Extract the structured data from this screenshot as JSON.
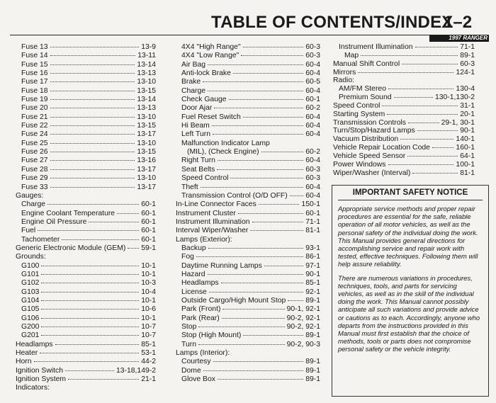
{
  "header": {
    "title": "TABLE OF CONTENTS/INDEX",
    "page_number": "1–2",
    "vehicle": "1997 RANGER"
  },
  "columns": [
    {
      "continued": [
        {
          "label": "Fuse 13",
          "page": "13-9"
        },
        {
          "label": "Fuse 14",
          "page": "13-11"
        },
        {
          "label": "Fuse 15",
          "page": "13-14"
        },
        {
          "label": "Fuse 16",
          "page": "13-13"
        },
        {
          "label": "Fuse 17",
          "page": "13-10"
        },
        {
          "label": "Fuse 18",
          "page": "13-15"
        },
        {
          "label": "Fuse 19",
          "page": "13-14"
        },
        {
          "label": "Fuse 20",
          "page": "13-13"
        },
        {
          "label": "Fuse 21",
          "page": "13-10"
        },
        {
          "label": "Fuse 22",
          "page": "13-15"
        },
        {
          "label": "Fuse 24",
          "page": "13-17"
        },
        {
          "label": "Fuse 25",
          "page": "13-10"
        },
        {
          "label": "Fuse 26",
          "page": "13-15"
        },
        {
          "label": "Fuse 27",
          "page": "13-16"
        },
        {
          "label": "Fuse 28",
          "page": "13-17"
        },
        {
          "label": "Fuse 29",
          "page": "13-10"
        },
        {
          "label": "Fuse 33",
          "page": "13-17"
        }
      ],
      "entries": [
        {
          "label": "Gauges:",
          "items": [
            {
              "label": "Charge",
              "page": "60-1"
            },
            {
              "label": "Engine Coolant Temperature",
              "page": "60-1"
            },
            {
              "label": "Engine Oil Pressure",
              "page": "60-1"
            },
            {
              "label": "Fuel",
              "page": "60-1"
            },
            {
              "label": "Tachometer",
              "page": "60-1"
            }
          ]
        },
        {
          "label": "Generic Electronic Module (GEM)",
          "page": "59-1"
        },
        {
          "label": "Grounds:",
          "items": [
            {
              "label": "G100",
              "page": "10-1"
            },
            {
              "label": "G101",
              "page": "10-1"
            },
            {
              "label": "G102",
              "page": "10-3"
            },
            {
              "label": "G103",
              "page": "10-4"
            },
            {
              "label": "G104",
              "page": "10-1"
            },
            {
              "label": "G105",
              "page": "10-6"
            },
            {
              "label": "G106",
              "page": "10-1"
            },
            {
              "label": "G200",
              "page": "10-7"
            },
            {
              "label": "G201",
              "page": "10-7"
            }
          ]
        },
        {
          "label": "Headlamps",
          "page": "85-1"
        },
        {
          "label": "Heater",
          "page": "53-1"
        },
        {
          "label": "Horn",
          "page": "44-2"
        },
        {
          "label": "Ignition Switch",
          "page": "13-18,149-2"
        },
        {
          "label": "Ignition System",
          "page": "21-1"
        },
        {
          "label": "Indicators:"
        }
      ]
    },
    {
      "continued": [
        {
          "label": "4X4 \"High Range\"",
          "page": "60-3"
        },
        {
          "label": "4X4 \"Low Range\"",
          "page": "60-3"
        },
        {
          "label": "Air Bag",
          "page": "60-4"
        },
        {
          "label": "Anti-lock Brake",
          "page": "60-4"
        },
        {
          "label": "Brake",
          "page": "60-5"
        },
        {
          "label": "Charge",
          "page": "60-4"
        },
        {
          "label": "Check Gauge",
          "page": "60-1"
        },
        {
          "label": "Door Ajar",
          "page": "60-2"
        },
        {
          "label": "Fuel Reset Switch",
          "page": "60-4"
        },
        {
          "label": "Hi Beam",
          "page": "60-4"
        },
        {
          "label": "Left Turn",
          "page": "60-4"
        },
        {
          "label": "Malfunction Indicator Lamp",
          "items": [
            {
              "label": "(MIL), (Check Engine)",
              "page": "60-2"
            }
          ]
        },
        {
          "label": "Right Turn",
          "page": "60-4"
        },
        {
          "label": "Seat Belts",
          "page": "60-3"
        },
        {
          "label": "Speed Control",
          "page": "60-3"
        },
        {
          "label": "Theft",
          "page": "60-4"
        },
        {
          "label": "Transmission Control (O/D OFF)",
          "page": "60-4"
        }
      ],
      "entries": [
        {
          "label": "In-Line Connector Faces",
          "page": "150-1"
        },
        {
          "label": "Instrument Cluster",
          "page": "60-1"
        },
        {
          "label": "Instrument Illumination",
          "page": "71-1"
        },
        {
          "label": "Interval Wiper/Washer",
          "page": "81-1"
        },
        {
          "label": "Lamps (Exterior):",
          "items": [
            {
              "label": "Backup",
              "page": "93-1"
            },
            {
              "label": "Fog",
              "page": "86-1"
            },
            {
              "label": "Daytime Running Lamps",
              "page": "97-1"
            },
            {
              "label": "Hazard",
              "page": "90-1"
            },
            {
              "label": "Headlamps",
              "page": "85-1"
            },
            {
              "label": "License",
              "page": "92-1"
            },
            {
              "label": "Outside Cargo/High Mount Stop",
              "page": "89-1"
            },
            {
              "label": "Park (Front)",
              "page": "90-1, 92-1"
            },
            {
              "label": "Park (Rear)",
              "page": "90-2, 92-1"
            },
            {
              "label": "Stop",
              "page": "90-2, 92-1"
            },
            {
              "label": "Stop (High Mount)",
              "page": "89-1"
            },
            {
              "label": "Turn",
              "page": "90-2, 90-3"
            }
          ]
        },
        {
          "label": "Lamps (Interior):",
          "items": [
            {
              "label": "Courtesy",
              "page": "89-1"
            },
            {
              "label": "Dome",
              "page": "89-1"
            },
            {
              "label": "Glove Box",
              "page": "89-1"
            }
          ]
        }
      ]
    },
    {
      "continued": [
        {
          "label": "Instrument Illumination",
          "page": "71-1",
          "items": [
            {
              "label": "Map",
              "page": "89-1"
            }
          ]
        }
      ],
      "entries": [
        {
          "label": "Manual Shift Control",
          "page": "60-3"
        },
        {
          "label": "Mirrors",
          "page": "124-1"
        },
        {
          "label": "Radio:",
          "items": [
            {
              "label": "AM/FM Stereo",
              "page": "130-4"
            },
            {
              "label": "Premium Sound",
              "page": "130-1,130-2"
            }
          ]
        },
        {
          "label": "Speed Control",
          "page": "31-1"
        },
        {
          "label": "Starting System",
          "page": "20-1"
        },
        {
          "label": "Transmission Controls",
          "page": "29-1, 30-1"
        },
        {
          "label": "Turn/Stop/Hazard Lamps",
          "page": "90-1"
        },
        {
          "label": "Vacuum Distribution",
          "page": "140-1"
        },
        {
          "label": "Vehicle Repair Location Code",
          "page": "160-1"
        },
        {
          "label": "Vehicle Speed Sensor",
          "page": "64-1"
        },
        {
          "label": "Power Windows",
          "page": "100-1"
        },
        {
          "label": "Wiper/Washer (Interval)",
          "page": "81-1"
        }
      ]
    }
  ],
  "notice": {
    "title": "IMPORTANT SAFETY NOTICE",
    "paragraphs": [
      "Appropriate service methods and proper repair procedures are essential for the safe, reliable operation of all motor vehicles, as well as the personal safety of the individual doing the work. This Manual provides general directions for accomplishing service and repair work with tested, effective techniques. Following them will help assure reliability.",
      "There are numerous variations in procedures, techniques, tools, and parts for servicing vehicles, as well as in the skill of the individual doing the work. This Manual cannot possibly anticipate all such variations and provide advice or cautions as to each. Accordingly, anyone who departs from the instructions provided in this Manual must first establish that the choice of methods, tools or parts does not compromise personal safety or the vehicle integrity."
    ]
  }
}
